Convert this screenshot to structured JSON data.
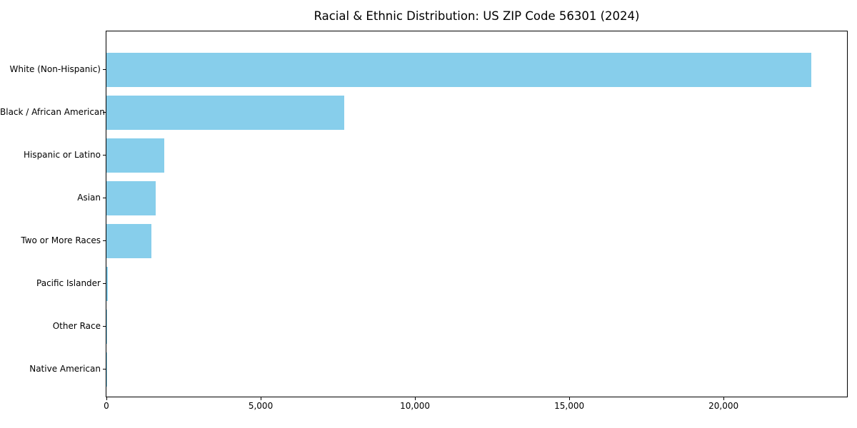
{
  "title": "Racial & Ethnic Distribution: US ZIP Code 56301 (2024)",
  "colors": {
    "bar": "#87CEEB",
    "axis": "#000000",
    "background": "#ffffff",
    "text": "#000000"
  },
  "chart_data": {
    "type": "bar",
    "orientation": "horizontal",
    "title": "Racial & Ethnic Distribution: US ZIP Code 56301 (2024)",
    "xlabel": "",
    "ylabel": "",
    "categories": [
      "White (Non-Hispanic)",
      "Black / African American",
      "Hispanic or Latino",
      "Asian",
      "Two or More Races",
      "Pacific Islander",
      "Other Race",
      "Native American"
    ],
    "values": [
      22850,
      7700,
      1870,
      1600,
      1450,
      40,
      20,
      10
    ],
    "xlim": [
      0,
      24000
    ],
    "x_ticks": [
      0,
      5000,
      10000,
      15000,
      20000
    ],
    "x_tick_labels": [
      "0",
      "5,000",
      "10,000",
      "15,000",
      "20,000"
    ],
    "bar_color": "#87CEEB",
    "grid": false,
    "legend_position": "none",
    "sort_order": "descending"
  }
}
